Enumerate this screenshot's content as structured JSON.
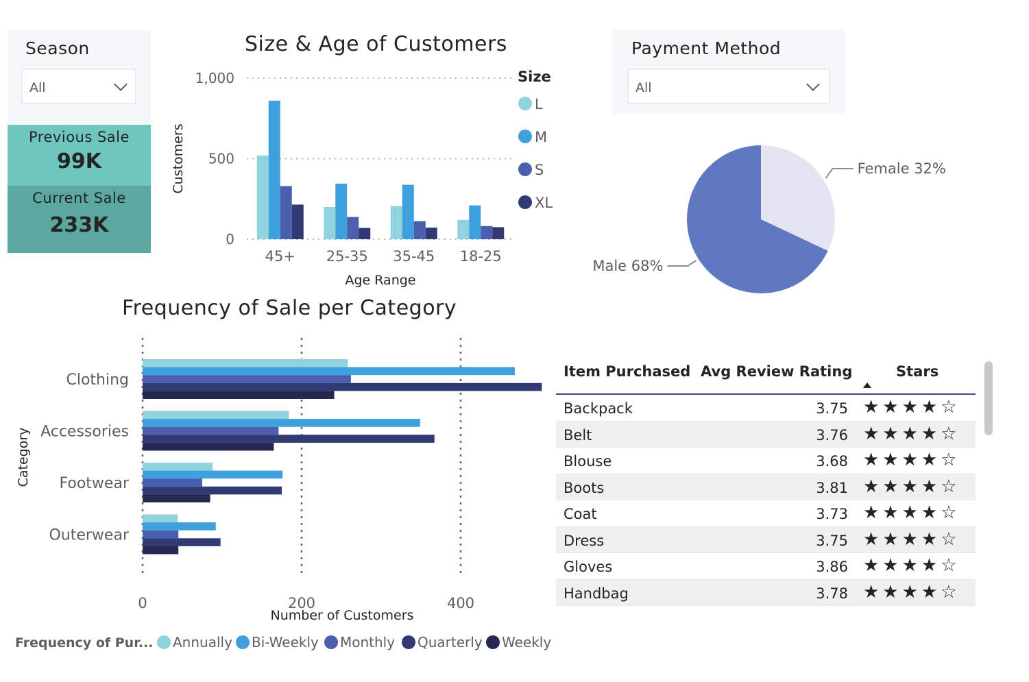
{
  "slicers": {
    "season": {
      "title": "Season",
      "value": "All"
    },
    "payment": {
      "title": "Payment Method",
      "value": "All"
    }
  },
  "cards": {
    "previous": {
      "label": "Previous Sale",
      "value": "99K",
      "color": "#6ec7be"
    },
    "current": {
      "label": "Current Sale",
      "value": "233K",
      "color": "#5aa8a0"
    }
  },
  "chart_data": [
    {
      "type": "bar",
      "title": "Size & Age of Customers",
      "xlabel": "Age Range",
      "ylabel": "Customers",
      "categories": [
        "45+",
        "25-35",
        "35-45",
        "18-25"
      ],
      "ylim": [
        0,
        1000
      ],
      "yticks": [
        "0",
        "500",
        "1,000"
      ],
      "yticks_values": [
        0,
        500,
        1000
      ],
      "grid": true,
      "legend": {
        "title": "Size",
        "placement": "right"
      },
      "series": [
        {
          "name": "L",
          "color": "#8fd3de",
          "values": [
            520,
            200,
            205,
            120
          ]
        },
        {
          "name": "M",
          "color": "#3fa0de",
          "values": [
            860,
            345,
            338,
            210
          ]
        },
        {
          "name": "S",
          "color": "#4a5fb0",
          "values": [
            330,
            138,
            112,
            82
          ]
        },
        {
          "name": "XL",
          "color": "#313a73",
          "values": [
            215,
            70,
            72,
            75
          ]
        }
      ]
    },
    {
      "type": "pie",
      "title": "",
      "slices": [
        {
          "name": "Female",
          "value": 32,
          "label": "Female 32%",
          "color": "#e4e4f2"
        },
        {
          "name": "Male",
          "value": 68,
          "label": "Male 68%",
          "color": "#6078c0"
        }
      ]
    },
    {
      "type": "bar",
      "orientation": "horizontal",
      "title": "Frequency of Sale per Category",
      "xlabel": "Number of Customers",
      "ylabel": "Category",
      "categories": [
        "Clothing",
        "Accessories",
        "Footwear",
        "Outerwear"
      ],
      "xlim": [
        0,
        500
      ],
      "xticks": [
        "0",
        "200",
        "400"
      ],
      "xticks_values": [
        0,
        200,
        400
      ],
      "grid": true,
      "legend": {
        "title": "Frequency of Pur...",
        "placement": "bottom"
      },
      "series": [
        {
          "name": "Annually",
          "color": "#8fd3de",
          "values": [
            258,
            184,
            88,
            44
          ]
        },
        {
          "name": "Bi-Weekly",
          "color": "#3fa0de",
          "values": [
            468,
            349,
            176,
            92
          ]
        },
        {
          "name": "Monthly",
          "color": "#4a5fb0",
          "values": [
            262,
            171,
            75,
            45
          ]
        },
        {
          "name": "Quarterly",
          "color": "#313a73",
          "values": [
            502,
            367,
            175,
            98
          ]
        },
        {
          "name": "Weekly",
          "color": "#252850",
          "values": [
            241,
            165,
            85,
            45
          ]
        }
      ]
    }
  ],
  "table": {
    "headers": {
      "item": "Item Purchased",
      "rating": "Avg Review Rating",
      "stars": "Stars"
    },
    "rows": [
      {
        "item": "Backpack",
        "rating": "3.75",
        "stars": "★★★★☆"
      },
      {
        "item": "Belt",
        "rating": "3.76",
        "stars": "★★★★☆"
      },
      {
        "item": "Blouse",
        "rating": "3.68",
        "stars": "★★★★☆"
      },
      {
        "item": "Boots",
        "rating": "3.81",
        "stars": "★★★★☆"
      },
      {
        "item": "Coat",
        "rating": "3.73",
        "stars": "★★★★☆"
      },
      {
        "item": "Dress",
        "rating": "3.75",
        "stars": "★★★★☆"
      },
      {
        "item": "Gloves",
        "rating": "3.86",
        "stars": "★★★★☆"
      },
      {
        "item": "Handbag",
        "rating": "3.78",
        "stars": "★★★★☆"
      }
    ]
  }
}
